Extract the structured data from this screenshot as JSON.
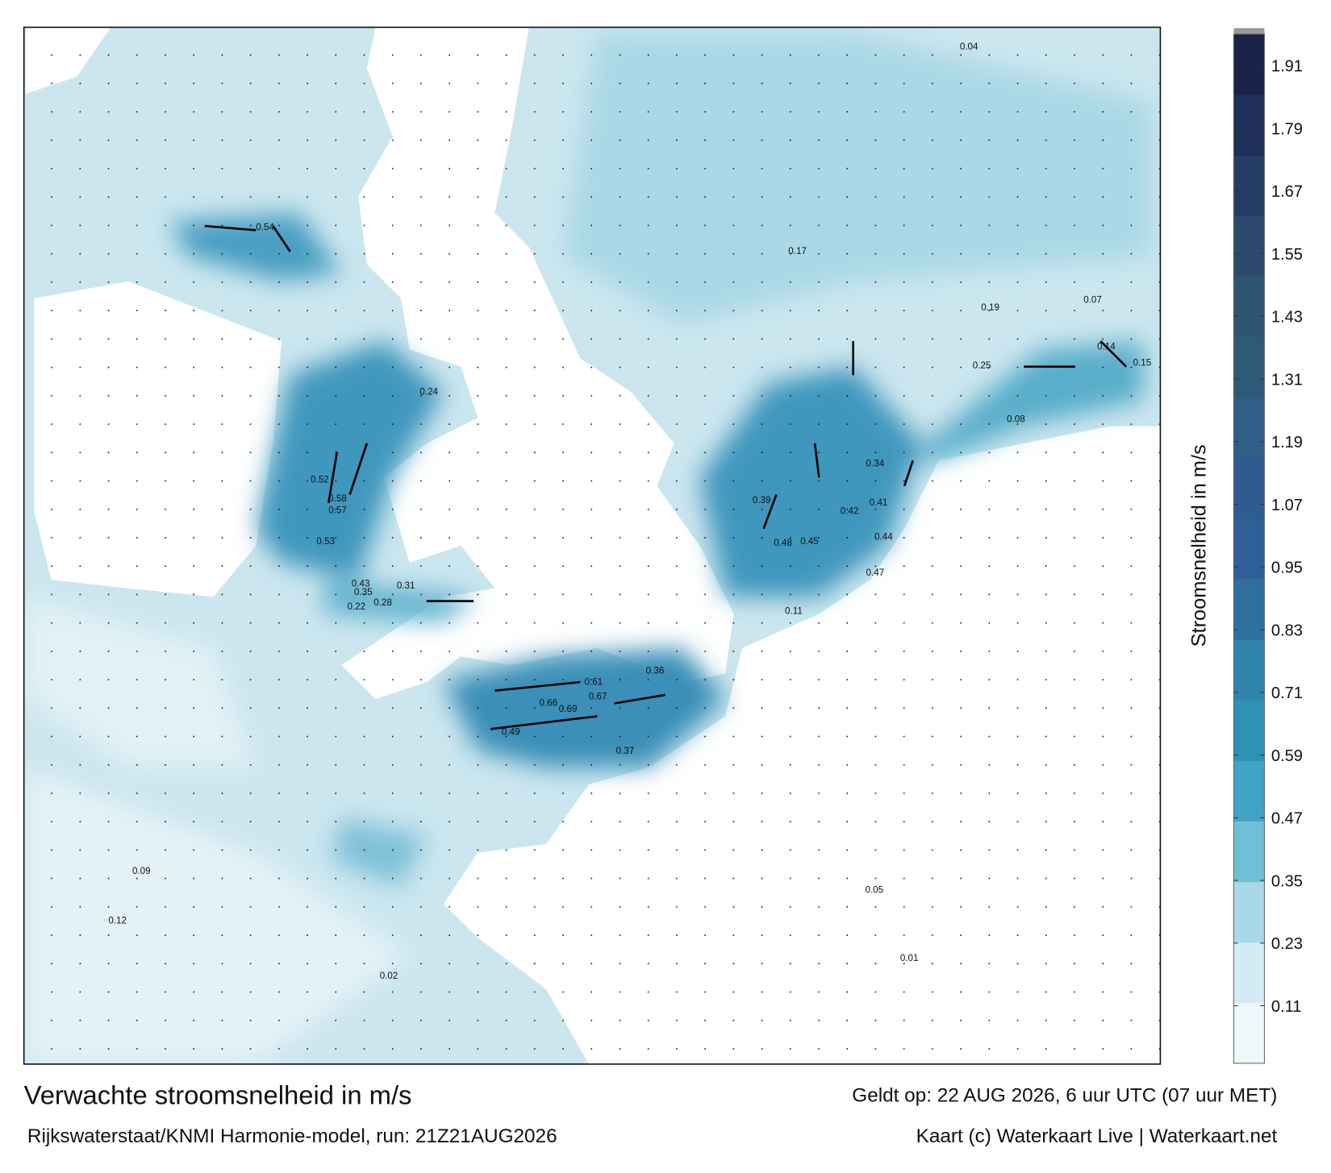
{
  "header": {
    "title": "Verwachte stroomsnelheid in m/s",
    "source": "Rijkswaterstaat/KNMI Harmonie-model, run: 21Z21AUG2026",
    "valid_time": "Geldt op: 22 AUG 2026, 6 uur UTC (07 uur MET)",
    "credit": "Kaart (c) Waterkaart Live | Waterkaart.net"
  },
  "colorbar": {
    "label": "Stroomsnelheid in m/s",
    "lim": [
      0,
      1.97
    ],
    "ticks": [
      0.11,
      0.23,
      0.35,
      0.47,
      0.59,
      0.71,
      0.83,
      0.95,
      1.07,
      1.19,
      1.31,
      1.43,
      1.55,
      1.67,
      1.79,
      1.91
    ],
    "colors": [
      "#eef7fa",
      "#d3ebf2",
      "#a9d8e6",
      "#6fbfd6",
      "#3fa4c4",
      "#2d92b6",
      "#2f84ad",
      "#2f6fa0",
      "#2f5f97",
      "#2f5b90",
      "#2f5e86",
      "#2e5a78",
      "#2e5570",
      "#2d4a6e",
      "#263d66",
      "#1f2f58",
      "#1a2247"
    ]
  },
  "map": {
    "current_labels": [
      0.69,
      0.67,
      0.66,
      0.61,
      0.58,
      0.57,
      0.54,
      0.53,
      0.52,
      0.49,
      0.48,
      0.47,
      0.45,
      0.44,
      0.43,
      0.42,
      0.41,
      0.39,
      0.37,
      0.36,
      0.35,
      0.34,
      0.31,
      0.28,
      0.25,
      0.24,
      0.22,
      0.19,
      0.17,
      0.15,
      0.14,
      0.12,
      0.11,
      0.09,
      0.08,
      0.07,
      0.05,
      0.04,
      0.02,
      0.01
    ]
  }
}
